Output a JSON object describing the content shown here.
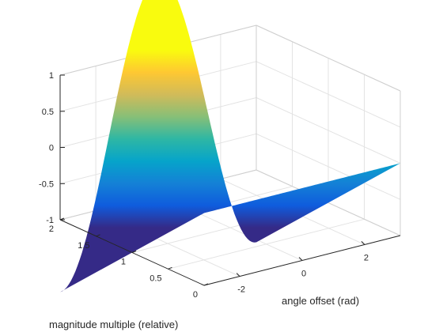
{
  "chart_data": {
    "type": "surface",
    "function": "z = cos(y) * x, x in [0,2], y in [-pi, pi] (cosine ridge peaking at angle offset 0)",
    "xlabel": "angle offset (rad)",
    "ylabel": "magnitude multiple (relative)",
    "zlabel": "",
    "xlim": [
      -3.14159,
      3.14159
    ],
    "ylim": [
      0,
      2
    ],
    "zlim": [
      -1,
      1
    ],
    "x_ticks": [
      -2,
      0,
      2
    ],
    "x_tick_labels": [
      "-2",
      "0",
      "2"
    ],
    "y_ticks": [
      0,
      0.5,
      1,
      1.5,
      2
    ],
    "y_tick_labels": [
      "0",
      "0.5",
      "1",
      "1.5",
      "2"
    ],
    "z_ticks": [
      -1,
      -0.5,
      0,
      0.5,
      1
    ],
    "z_tick_labels": [
      "-1",
      "-0.5",
      "0",
      "0.5",
      "1"
    ],
    "colormap": "parula",
    "colormap_stops": [
      "#352a87",
      "#0f5cdd",
      "#1481d6",
      "#06a4ca",
      "#2eb7a4",
      "#87bf77",
      "#d1bb59",
      "#fec832",
      "#f9fb0e"
    ],
    "grid": true,
    "surface_profile": {
      "angle_offset": [
        -3.1416,
        -2.3562,
        -1.5708,
        -0.7854,
        0,
        0.7854,
        1.5708,
        2.3562,
        3.1416
      ],
      "z": [
        -1,
        -0.7071,
        0,
        0.7071,
        1,
        0.7071,
        0,
        -0.7071,
        -1
      ]
    }
  }
}
